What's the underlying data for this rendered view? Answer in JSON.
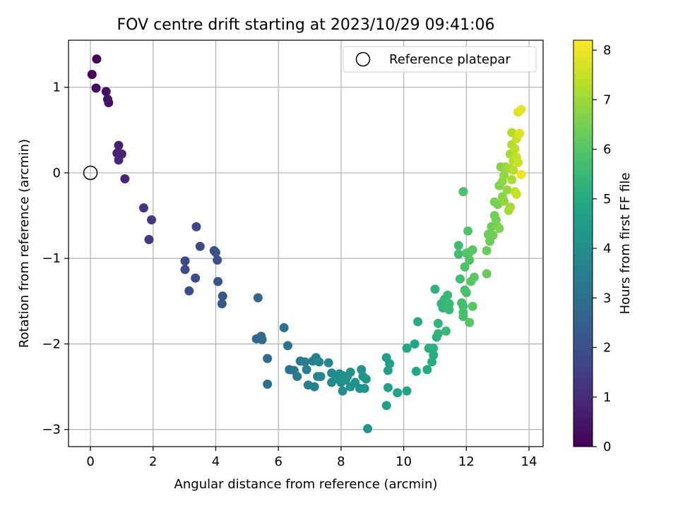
{
  "chart_data": {
    "type": "scatter",
    "title": "FOV centre drift starting at 2023/10/29 09:41:06",
    "xlabel": "Angular distance from reference (arcmin)",
    "ylabel": "Rotation from reference (arcmin)",
    "xlim": [
      -0.7,
      14.45
    ],
    "ylim": [
      -3.2,
      1.55
    ],
    "xticks": [
      0,
      2,
      4,
      6,
      8,
      10,
      12,
      14
    ],
    "yticks": [
      -3,
      -2,
      -1,
      0,
      1
    ],
    "xtick_labels": [
      "0",
      "2",
      "4",
      "6",
      "8",
      "10",
      "12",
      "14"
    ],
    "ytick_labels": [
      "−3",
      "−2",
      "−1",
      "0",
      "1"
    ],
    "grid": true,
    "legend": {
      "placement": "top-right",
      "label": "Reference platepar",
      "marker": "open-circle"
    },
    "reference_point": {
      "x": 0,
      "y": 0
    },
    "colormap": "viridis",
    "colorbar": {
      "label": "Hours from first FF file",
      "range": [
        0,
        8.2
      ],
      "ticks": [
        0,
        1,
        2,
        3,
        4,
        5,
        6,
        7,
        8
      ],
      "tick_labels": [
        "0",
        "1",
        "2",
        "3",
        "4",
        "5",
        "6",
        "7",
        "8"
      ]
    },
    "series": [
      {
        "points": [
          {
            "x": 0.05,
            "y": 1.15,
            "c": 0.05
          },
          {
            "x": 0.2,
            "y": 1.33,
            "c": 0.1
          },
          {
            "x": 0.18,
            "y": 0.99,
            "c": 0.2
          },
          {
            "x": 0.5,
            "y": 0.95,
            "c": 0.35
          },
          {
            "x": 0.55,
            "y": 0.86,
            "c": 0.4
          },
          {
            "x": 0.58,
            "y": 0.82,
            "c": 0.45
          },
          {
            "x": 0.9,
            "y": 0.32,
            "c": 0.7
          },
          {
            "x": 0.85,
            "y": 0.23,
            "c": 0.75
          },
          {
            "x": 1.0,
            "y": 0.22,
            "c": 0.8
          },
          {
            "x": 0.9,
            "y": 0.15,
            "c": 0.85
          },
          {
            "x": 1.1,
            "y": -0.07,
            "c": 0.9
          },
          {
            "x": 1.7,
            "y": -0.41,
            "c": 1.2
          },
          {
            "x": 1.95,
            "y": -0.55,
            "c": 1.3
          },
          {
            "x": 1.87,
            "y": -0.78,
            "c": 1.35
          },
          {
            "x": 3.38,
            "y": -0.63,
            "c": 1.7
          },
          {
            "x": 3.5,
            "y": -0.86,
            "c": 1.8
          },
          {
            "x": 3.02,
            "y": -1.03,
            "c": 1.75
          },
          {
            "x": 3.02,
            "y": -1.13,
            "c": 1.85
          },
          {
            "x": 3.35,
            "y": -1.23,
            "c": 1.9
          },
          {
            "x": 3.15,
            "y": -1.38,
            "c": 1.95
          },
          {
            "x": 3.95,
            "y": -0.91,
            "c": 2.0
          },
          {
            "x": 4.0,
            "y": -0.93,
            "c": 2.05
          },
          {
            "x": 4.05,
            "y": -1.02,
            "c": 2.1
          },
          {
            "x": 4.07,
            "y": -1.27,
            "c": 2.15
          },
          {
            "x": 4.22,
            "y": -1.44,
            "c": 2.2
          },
          {
            "x": 4.2,
            "y": -1.53,
            "c": 2.25
          },
          {
            "x": 5.35,
            "y": -1.46,
            "c": 2.7
          },
          {
            "x": 5.3,
            "y": -1.94,
            "c": 2.75
          },
          {
            "x": 5.45,
            "y": -1.91,
            "c": 2.8
          },
          {
            "x": 5.48,
            "y": -1.95,
            "c": 2.85
          },
          {
            "x": 5.65,
            "y": -2.17,
            "c": 2.9
          },
          {
            "x": 5.65,
            "y": -2.47,
            "c": 2.95
          },
          {
            "x": 6.18,
            "y": -1.81,
            "c": 3.1
          },
          {
            "x": 6.3,
            "y": -2.02,
            "c": 3.15
          },
          {
            "x": 6.35,
            "y": -2.3,
            "c": 3.2
          },
          {
            "x": 6.5,
            "y": -2.31,
            "c": 3.25
          },
          {
            "x": 6.6,
            "y": -2.38,
            "c": 3.3
          },
          {
            "x": 6.7,
            "y": -2.2,
            "c": 3.35
          },
          {
            "x": 6.85,
            "y": -2.21,
            "c": 3.4
          },
          {
            "x": 6.9,
            "y": -2.3,
            "c": 3.45
          },
          {
            "x": 6.95,
            "y": -2.48,
            "c": 3.5
          },
          {
            "x": 7.1,
            "y": -2.2,
            "c": 3.55
          },
          {
            "x": 7.2,
            "y": -2.16,
            "c": 3.6
          },
          {
            "x": 7.25,
            "y": -2.38,
            "c": 3.65
          },
          {
            "x": 7.15,
            "y": -2.5,
            "c": 3.6
          },
          {
            "x": 7.3,
            "y": -2.21,
            "c": 3.7
          },
          {
            "x": 7.35,
            "y": -2.38,
            "c": 3.75
          },
          {
            "x": 7.6,
            "y": -2.22,
            "c": 3.8
          },
          {
            "x": 7.7,
            "y": -2.34,
            "c": 3.85
          },
          {
            "x": 7.7,
            "y": -2.45,
            "c": 3.9
          },
          {
            "x": 7.85,
            "y": -2.4,
            "c": 3.95
          },
          {
            "x": 7.95,
            "y": -2.35,
            "c": 3.95
          },
          {
            "x": 8.05,
            "y": -2.37,
            "c": 4.0
          },
          {
            "x": 8.0,
            "y": -2.45,
            "c": 4.0
          },
          {
            "x": 8.05,
            "y": -2.55,
            "c": 4.05
          },
          {
            "x": 8.15,
            "y": -2.42,
            "c": 4.05
          },
          {
            "x": 8.2,
            "y": -2.38,
            "c": 4.1
          },
          {
            "x": 8.3,
            "y": -2.33,
            "c": 4.1
          },
          {
            "x": 8.3,
            "y": -2.5,
            "c": 4.15
          },
          {
            "x": 8.45,
            "y": -2.45,
            "c": 4.15
          },
          {
            "x": 8.6,
            "y": -2.52,
            "c": 4.2
          },
          {
            "x": 8.65,
            "y": -2.3,
            "c": 4.2
          },
          {
            "x": 8.7,
            "y": -2.38,
            "c": 4.25
          },
          {
            "x": 8.75,
            "y": -2.52,
            "c": 4.25
          },
          {
            "x": 8.8,
            "y": -2.41,
            "c": 4.3
          },
          {
            "x": 8.85,
            "y": -2.99,
            "c": 4.3
          },
          {
            "x": 9.45,
            "y": -2.16,
            "c": 4.55
          },
          {
            "x": 9.55,
            "y": -2.23,
            "c": 4.6
          },
          {
            "x": 9.5,
            "y": -2.31,
            "c": 4.6
          },
          {
            "x": 9.5,
            "y": -2.51,
            "c": 4.65
          },
          {
            "x": 9.45,
            "y": -2.72,
            "c": 4.65
          },
          {
            "x": 9.8,
            "y": -2.57,
            "c": 4.7
          },
          {
            "x": 10.1,
            "y": -2.55,
            "c": 4.8
          },
          {
            "x": 10.1,
            "y": -2.05,
            "c": 4.85
          },
          {
            "x": 10.35,
            "y": -2.0,
            "c": 4.9
          },
          {
            "x": 10.4,
            "y": -2.32,
            "c": 4.9
          },
          {
            "x": 10.45,
            "y": -1.74,
            "c": 5.0
          },
          {
            "x": 10.75,
            "y": -2.3,
            "c": 5.0
          },
          {
            "x": 10.8,
            "y": -2.05,
            "c": 5.05
          },
          {
            "x": 10.9,
            "y": -2.21,
            "c": 5.1
          },
          {
            "x": 10.95,
            "y": -2.13,
            "c": 5.1
          },
          {
            "x": 10.95,
            "y": -2.05,
            "c": 5.15
          },
          {
            "x": 11.05,
            "y": -1.92,
            "c": 5.2
          },
          {
            "x": 11.0,
            "y": -1.36,
            "c": 5.25
          },
          {
            "x": 11.1,
            "y": -1.88,
            "c": 5.3
          },
          {
            "x": 11.1,
            "y": -1.76,
            "c": 5.3
          },
          {
            "x": 11.2,
            "y": -1.53,
            "c": 5.35
          },
          {
            "x": 11.25,
            "y": -1.58,
            "c": 5.4
          },
          {
            "x": 11.3,
            "y": -1.48,
            "c": 5.4
          },
          {
            "x": 11.35,
            "y": -1.85,
            "c": 5.45
          },
          {
            "x": 11.4,
            "y": -1.43,
            "c": 5.45
          },
          {
            "x": 11.45,
            "y": -1.53,
            "c": 5.5
          },
          {
            "x": 11.45,
            "y": -1.6,
            "c": 5.5
          },
          {
            "x": 11.75,
            "y": -0.85,
            "c": 5.6
          },
          {
            "x": 11.75,
            "y": -0.95,
            "c": 5.65
          },
          {
            "x": 11.8,
            "y": -1.24,
            "c": 5.65
          },
          {
            "x": 11.85,
            "y": -1.52,
            "c": 5.7
          },
          {
            "x": 11.9,
            "y": -1.56,
            "c": 5.7
          },
          {
            "x": 11.9,
            "y": -1.63,
            "c": 5.75
          },
          {
            "x": 11.9,
            "y": -1.68,
            "c": 5.75
          },
          {
            "x": 11.95,
            "y": -1.37,
            "c": 5.8
          },
          {
            "x": 12.0,
            "y": -1.4,
            "c": 5.8
          },
          {
            "x": 11.95,
            "y": -1.1,
            "c": 5.85
          },
          {
            "x": 11.9,
            "y": -0.22,
            "c": 5.85
          },
          {
            "x": 12.0,
            "y": -0.94,
            "c": 5.9
          },
          {
            "x": 12.05,
            "y": -0.68,
            "c": 5.9
          },
          {
            "x": 12.1,
            "y": -1.02,
            "c": 5.95
          },
          {
            "x": 12.1,
            "y": -0.93,
            "c": 5.95
          },
          {
            "x": 12.15,
            "y": -1.27,
            "c": 6.0
          },
          {
            "x": 12.2,
            "y": -0.9,
            "c": 6.0
          },
          {
            "x": 12.2,
            "y": -1.56,
            "c": 6.05
          },
          {
            "x": 12.1,
            "y": -1.75,
            "c": 6.05
          },
          {
            "x": 12.25,
            "y": -1.22,
            "c": 6.1
          },
          {
            "x": 12.65,
            "y": -1.18,
            "c": 6.25
          },
          {
            "x": 12.65,
            "y": -0.91,
            "c": 6.3
          },
          {
            "x": 12.7,
            "y": -0.72,
            "c": 6.35
          },
          {
            "x": 12.75,
            "y": -0.8,
            "c": 6.35
          },
          {
            "x": 12.8,
            "y": -0.63,
            "c": 6.4
          },
          {
            "x": 12.85,
            "y": -0.73,
            "c": 6.4
          },
          {
            "x": 12.9,
            "y": -0.5,
            "c": 6.45
          },
          {
            "x": 12.9,
            "y": -0.34,
            "c": 6.5
          },
          {
            "x": 12.95,
            "y": -0.55,
            "c": 6.5
          },
          {
            "x": 13.0,
            "y": -0.63,
            "c": 6.55
          },
          {
            "x": 13.0,
            "y": -0.37,
            "c": 6.55
          },
          {
            "x": 13.05,
            "y": -0.15,
            "c": 6.6
          },
          {
            "x": 13.05,
            "y": -0.65,
            "c": 6.6
          },
          {
            "x": 13.1,
            "y": 0.07,
            "c": 6.7
          },
          {
            "x": 13.15,
            "y": -0.1,
            "c": 6.75
          },
          {
            "x": 13.15,
            "y": -0.28,
            "c": 6.75
          },
          {
            "x": 13.2,
            "y": -0.33,
            "c": 6.8
          },
          {
            "x": 13.2,
            "y": -0.03,
            "c": 6.85
          },
          {
            "x": 13.25,
            "y": 0.07,
            "c": 6.9
          },
          {
            "x": 13.3,
            "y": -0.2,
            "c": 6.9
          },
          {
            "x": 13.35,
            "y": -0.44,
            "c": 7.0
          },
          {
            "x": 13.35,
            "y": 0.05,
            "c": 7.05
          },
          {
            "x": 13.4,
            "y": 0.22,
            "c": 7.1
          },
          {
            "x": 13.4,
            "y": -0.4,
            "c": 7.1
          },
          {
            "x": 13.45,
            "y": -0.08,
            "c": 7.15
          },
          {
            "x": 13.45,
            "y": 0.33,
            "c": 7.2
          },
          {
            "x": 13.45,
            "y": 0.47,
            "c": 7.25
          },
          {
            "x": 13.5,
            "y": 0.14,
            "c": 7.3
          },
          {
            "x": 13.5,
            "y": 0.03,
            "c": 7.3
          },
          {
            "x": 13.55,
            "y": -0.22,
            "c": 7.35
          },
          {
            "x": 13.55,
            "y": 0.28,
            "c": 7.4
          },
          {
            "x": 13.6,
            "y": 0.18,
            "c": 7.45
          },
          {
            "x": 13.6,
            "y": 0.4,
            "c": 7.5
          },
          {
            "x": 13.6,
            "y": -0.25,
            "c": 7.5
          },
          {
            "x": 13.65,
            "y": 0.12,
            "c": 7.55
          },
          {
            "x": 13.65,
            "y": 0.71,
            "c": 7.7
          },
          {
            "x": 13.7,
            "y": 0.46,
            "c": 7.8
          },
          {
            "x": 13.75,
            "y": 0.74,
            "c": 7.9
          },
          {
            "x": 13.75,
            "y": -0.02,
            "c": 8.0
          }
        ]
      }
    ]
  }
}
